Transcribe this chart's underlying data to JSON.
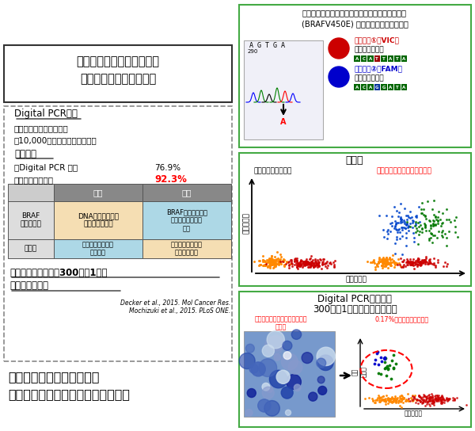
{
  "title_left1": "東京大学動物医療センター",
  "title_left2": "遺伝子検査部開発データ",
  "section1_header": "Digital PCR解析",
  "section1_bullets": [
    "・二種類の蛍光プローブ",
    "・10,000個の細胞を個別に解析"
  ],
  "section2_header": "高い感度",
  "section2_line1": "・Digital PCR 単独",
  "section2_val1": "76.9%",
  "section2_line2": "・細胞診との併用",
  "section2_val2": "92.3%",
  "section3_line1": "検体の中に含まれる300個に1個の",
  "section3_line2": "腫瘍細胞を検出",
  "citation1": "Decker et al., 2015. Mol Cancer Res.",
  "citation2": "Mochizuki et al., 2015. PLoS ONE.",
  "footer1": "検体は冷凍保存した尿沈渣",
  "footer2": "または前立腺マッサージ液沈渣など",
  "right_title1": "犬移行上皮癌及び前立腺癌に特異的な遺伝子変異",
  "right_title2": "(BRAFV450E) と検査用プローブの開発",
  "probe1_label1": "蛍光色素①（VIC）",
  "probe1_label2": "野生型プローブ",
  "probe2_label1": "蛍光色素②（FAM）",
  "probe2_label2": "変異型プローブ",
  "scatter_title": "解析例",
  "scatter_left_label": "健常犬（変異無し）",
  "scatter_right_label": "移行上皮癌症例（変異有り）",
  "scatter_ylabel": "変異遺伝子",
  "scatter_xlabel": "正常遺伝子",
  "pcr_title1": "Digital PCR法により",
  "pcr_title2": "300個に1個の腫瘍細胞を検出",
  "pcr_red_label1": "重度の感染を伴う前立腺癌症例",
  "pcr_red_label2": "尿沈渣",
  "pcr_green_label": "0.17%の変異遺伝子を検出",
  "pcr_xlabel": "正常遺伝子",
  "pcr_ylabel": "変異\n遺伝子",
  "val2_color": "#ff0000",
  "right_box_border": "#44aa44",
  "table_header_bg": "#888888",
  "table_row1_left_bg": "#dddddd",
  "table_row1_mid_bg": "#f5deb3",
  "table_row1_right_bg": "#add8e6",
  "table_row2_left_bg": "#dddddd",
  "table_row2_mid_bg": "#add8e6",
  "table_row2_right_bg": "#f5deb3"
}
